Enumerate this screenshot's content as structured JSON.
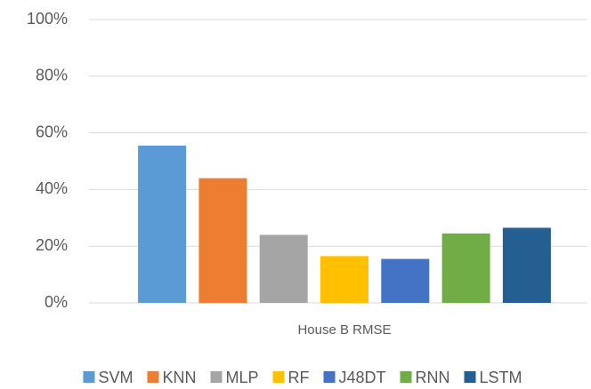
{
  "chart_data": {
    "type": "bar",
    "categories": [
      "House B RMSE"
    ],
    "series": [
      {
        "name": "SVM",
        "color": "#5b9bd5",
        "values": [
          55.5
        ]
      },
      {
        "name": "KNN",
        "color": "#ed7d31",
        "values": [
          44
        ]
      },
      {
        "name": "MLP",
        "color": "#a5a5a5",
        "values": [
          24
        ]
      },
      {
        "name": "RF",
        "color": "#ffc000",
        "values": [
          16.5
        ]
      },
      {
        "name": "J48DT",
        "color": "#4472c4",
        "values": [
          15.5
        ]
      },
      {
        "name": "RNN",
        "color": "#70ad47",
        "values": [
          24.5
        ]
      },
      {
        "name": "LSTM",
        "color": "#255e91",
        "values": [
          26.5
        ]
      }
    ],
    "ylim": [
      0,
      100
    ],
    "yticks": [
      {
        "value": 0,
        "label": "0%"
      },
      {
        "value": 20,
        "label": "20%"
      },
      {
        "value": 40,
        "label": "40%"
      },
      {
        "value": 60,
        "label": "60%"
      },
      {
        "value": 80,
        "label": "80%"
      },
      {
        "value": 100,
        "label": "100%"
      }
    ],
    "grid": true,
    "legend": "bottom"
  }
}
